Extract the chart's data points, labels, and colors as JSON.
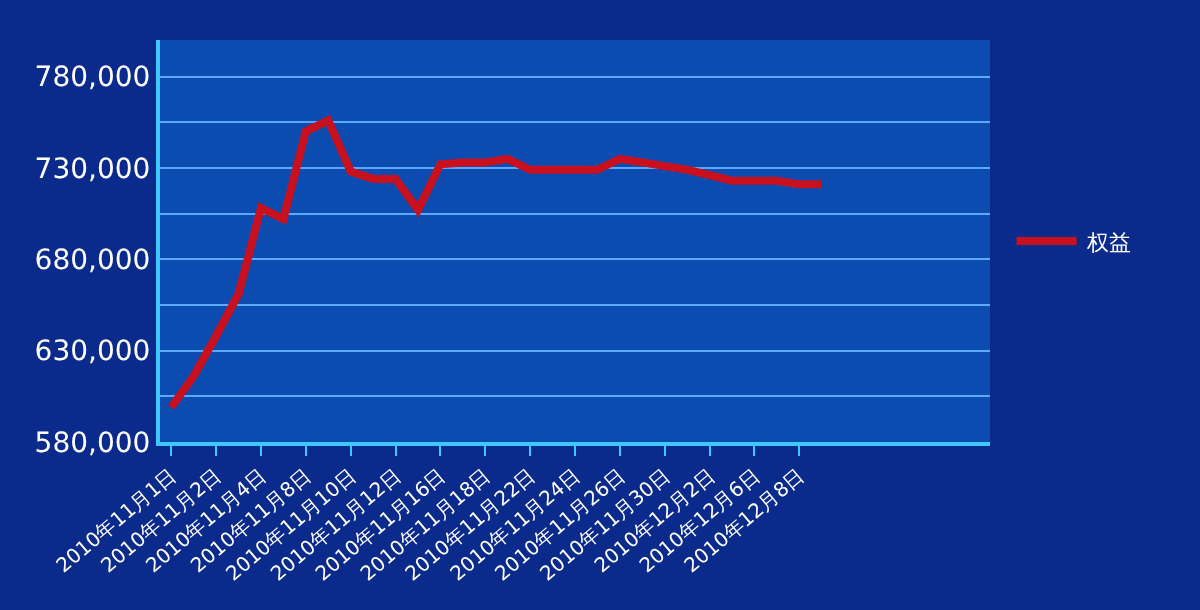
{
  "chart_data": {
    "type": "line",
    "categories": [
      "2010年11月1日",
      null,
      "2010年11月2日",
      null,
      "2010年11月4日",
      null,
      "2010年11月8日",
      null,
      "2010年11月10日",
      null,
      "2010年11月12日",
      null,
      "2010年11月16日",
      null,
      "2010年11月18日",
      null,
      "2010年11月22日",
      null,
      "2010年11月24日",
      null,
      "2010年11月26日",
      null,
      "2010年11月30日",
      null,
      "2010年12月2日",
      null,
      "2010年12月6日",
      null,
      "2010年12月8日",
      null,
      null,
      null,
      null,
      null,
      null,
      null,
      null
    ],
    "series": [
      {
        "name": "权益",
        "color": "#c8101e",
        "values": [
          599000,
          616000,
          638000,
          661000,
          708000,
          702000,
          750000,
          756000,
          728000,
          724000,
          724000,
          707000,
          732000,
          733000,
          733000,
          735000,
          729000,
          729000,
          729000,
          729000,
          735000,
          733000,
          731000,
          729000,
          726000,
          723000,
          723000,
          723000,
          721000,
          721000,
          null,
          null,
          null,
          null,
          null,
          null,
          null
        ]
      }
    ],
    "ylim": [
      580000,
      800000
    ],
    "yticks": [
      {
        "value": 580000,
        "label": "580,000"
      },
      {
        "value": 605000,
        "label": null
      },
      {
        "value": 630000,
        "label": "630,000"
      },
      {
        "value": 655000,
        "label": null
      },
      {
        "value": 680000,
        "label": "680,000"
      },
      {
        "value": 705000,
        "label": null
      },
      {
        "value": 730000,
        "label": "730,000"
      },
      {
        "value": 755000,
        "label": null
      },
      {
        "value": 780000,
        "label": "780,000"
      }
    ],
    "grid": "y",
    "legend": "right",
    "marker": "none",
    "line_style": "solid"
  }
}
